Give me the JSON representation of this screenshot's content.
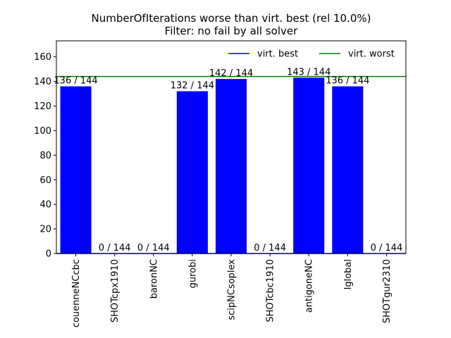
{
  "chart_data": {
    "type": "bar",
    "title": "NumberOfIterations worse than virt. best (rel 10.0%)",
    "subtitle": "Filter: no fail by all solver",
    "xlabel": "",
    "ylabel": "",
    "categories": [
      "couenneNCcbc",
      "SHOTcpx1910",
      "baronNC",
      "gurobi",
      "scipNCsoplex",
      "SHOTcbc1910",
      "antigoneNC",
      "lglobal",
      "SHOTgur2310"
    ],
    "values": [
      136,
      0,
      0,
      132,
      142,
      0,
      143,
      136,
      0
    ],
    "data_labels": [
      "136 / 144",
      "0 / 144",
      "0 / 144",
      "132 / 144",
      "142 / 144",
      "0 / 144",
      "143 / 144",
      "136 / 144",
      "0 / 144"
    ],
    "ylim": [
      0,
      173
    ],
    "yticks": [
      0,
      20,
      40,
      60,
      80,
      100,
      120,
      140,
      160
    ],
    "grid": false,
    "bar_color": "#0000ff",
    "reference_lines": [
      {
        "name": "virt. best",
        "value": 0,
        "color": "#0000ff"
      },
      {
        "name": "virt. worst",
        "value": 144,
        "color": "#008000"
      }
    ],
    "legend_position": "top-right"
  }
}
